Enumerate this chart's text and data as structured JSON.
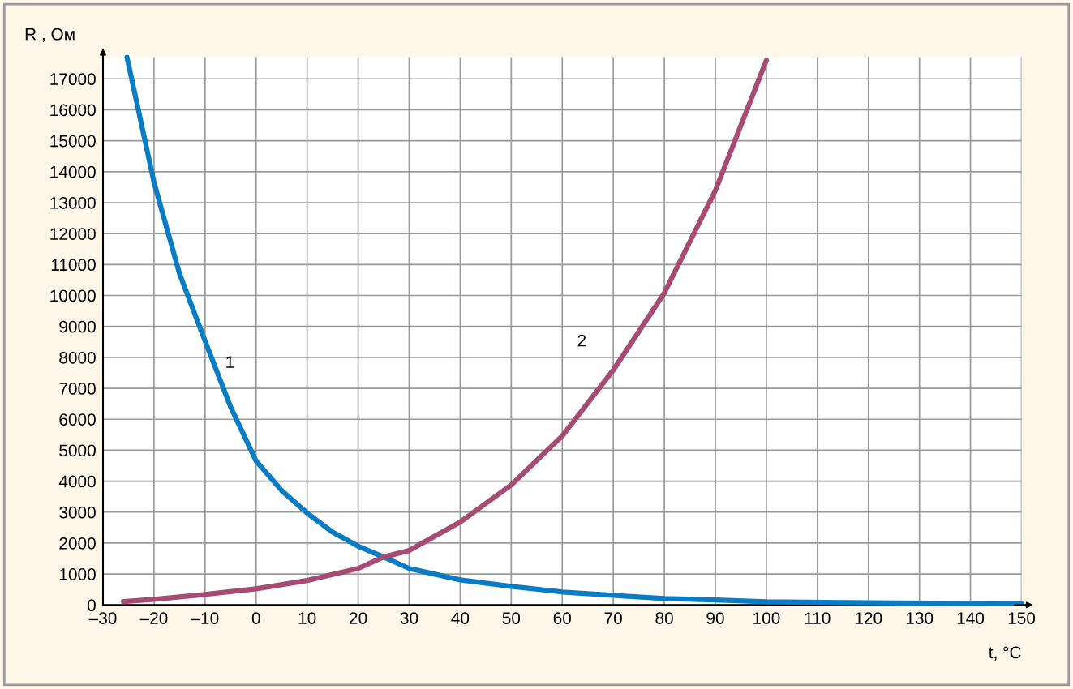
{
  "chart_data": {
    "type": "line",
    "xlabel": "t, °C",
    "ylabel": "R , Ом",
    "xlim": [
      -30,
      150
    ],
    "ylim": [
      0,
      17700
    ],
    "xticks": [
      {
        "value": -30,
        "label": "–30"
      },
      {
        "value": -20,
        "label": "–20"
      },
      {
        "value": -10,
        "label": "–10"
      },
      0,
      10,
      20,
      30,
      40,
      50,
      60,
      70,
      80,
      90,
      100,
      110,
      120,
      130,
      140,
      150
    ],
    "yticks": [
      0,
      1000,
      2000,
      3000,
      4000,
      5000,
      6000,
      7000,
      8000,
      9000,
      10000,
      11000,
      12000,
      13000,
      14000,
      15000,
      16000,
      17000
    ],
    "grid": true,
    "line_style": "solid",
    "marker": "none",
    "series": [
      {
        "name": "1",
        "color": "#0a7cc4",
        "x": [
          -25.3,
          -20,
          -15,
          -10,
          -5,
          0,
          5,
          10,
          15,
          20,
          25,
          30,
          40,
          50,
          60,
          70,
          80,
          90,
          100,
          120,
          150
        ],
        "values": [
          17700,
          13650,
          10700,
          8530,
          6400,
          4650,
          3700,
          2970,
          2350,
          1900,
          1550,
          1180,
          810,
          600,
          420,
          310,
          210,
          160,
          100,
          70,
          40
        ]
      },
      {
        "name": "2",
        "color": "#a64b72",
        "x": [
          -26,
          -20,
          -10,
          0,
          10,
          20,
          25,
          30,
          40,
          50,
          60,
          70,
          80,
          90,
          100
        ],
        "values": [
          110,
          180,
          340,
          520,
          790,
          1180,
          1550,
          1760,
          2680,
          3880,
          5460,
          7590,
          10080,
          13390,
          17600
        ]
      }
    ]
  }
}
